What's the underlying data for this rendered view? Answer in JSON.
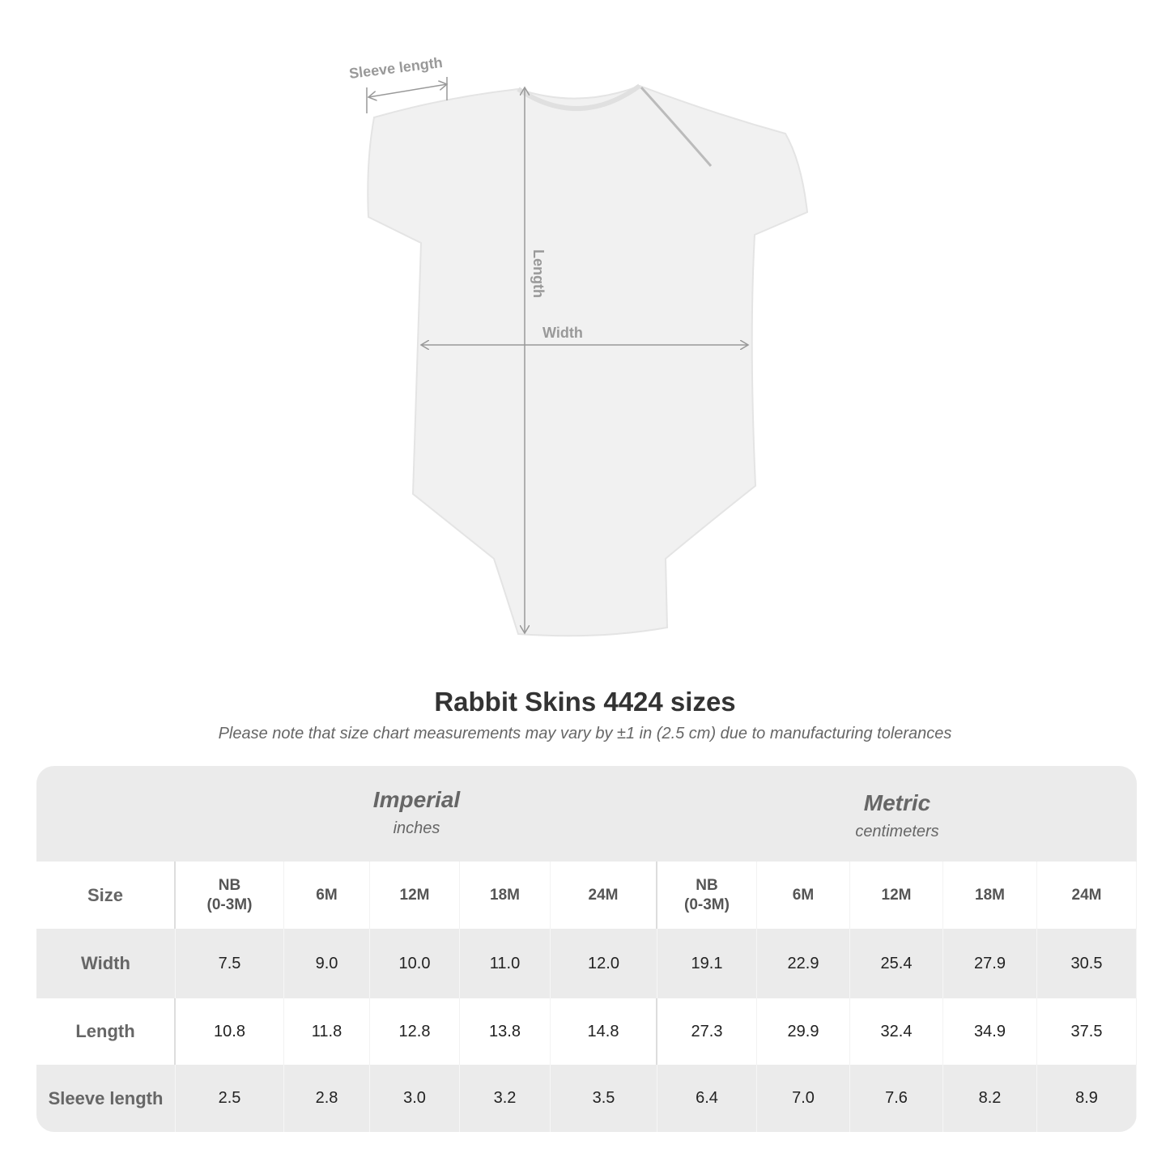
{
  "diagram": {
    "labels": {
      "sleeve": "Sleeve length",
      "length": "Length",
      "width": "Width"
    }
  },
  "title": "Rabbit Skins 4424 sizes",
  "note": "Please note that size chart measurements may vary by ±1 in (2.5 cm) due to manufacturing tolerances",
  "table": {
    "imperial": {
      "system": "Imperial",
      "unit": "inches"
    },
    "metric": {
      "system": "Metric",
      "unit": "centimeters"
    },
    "size_label": "Size",
    "sizes": [
      "NB\n(0-3M)",
      "6M",
      "12M",
      "18M",
      "24M",
      "NB\n(0-3M)",
      "6M",
      "12M",
      "18M",
      "24M"
    ],
    "rows": [
      {
        "label": "Width",
        "values": [
          "7.5",
          "9.0",
          "10.0",
          "11.0",
          "12.0",
          "19.1",
          "22.9",
          "25.4",
          "27.9",
          "30.5"
        ]
      },
      {
        "label": "Length",
        "values": [
          "10.8",
          "11.8",
          "12.8",
          "13.8",
          "14.8",
          "27.3",
          "29.9",
          "32.4",
          "34.9",
          "37.5"
        ]
      },
      {
        "label": "Sleeve length",
        "values": [
          "2.5",
          "2.8",
          "3.0",
          "3.2",
          "3.5",
          "6.4",
          "7.0",
          "7.6",
          "8.2",
          "8.9"
        ]
      }
    ]
  }
}
